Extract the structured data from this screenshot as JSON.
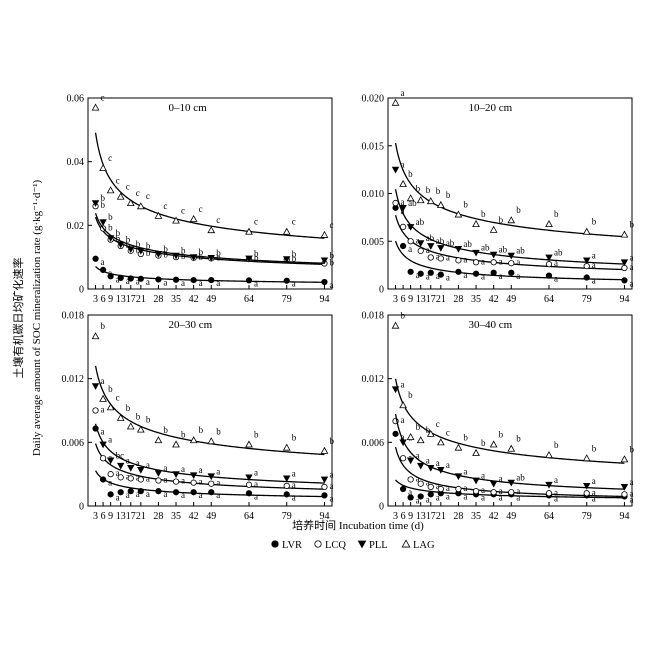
{
  "figure": {
    "ylabel_cn": "土壤有机碳日均矿化速率",
    "ylabel_en": "Daily average amount of SOC mineralization rate (g·kg⁻¹·d⁻¹)",
    "xlabel": "培养时间 Incubation time (d)",
    "legend": [
      {
        "marker": "filled-circle",
        "label": "LVR"
      },
      {
        "marker": "open-circle",
        "label": "LCQ"
      },
      {
        "marker": "filled-triangle-down",
        "label": "PLL"
      },
      {
        "marker": "open-triangle-up",
        "label": "LAG"
      }
    ]
  },
  "chart_data": [
    {
      "type": "scatter",
      "title": "0–10 cm",
      "x": [
        3,
        6,
        9,
        13,
        17,
        21,
        28,
        35,
        42,
        49,
        64,
        79,
        94
      ],
      "x_tick_labels": [
        "3",
        "6",
        "9",
        "13",
        "17",
        "21",
        "28",
        "35",
        "42",
        "49",
        "64",
        "79",
        "94"
      ],
      "ylim": [
        0,
        0.06
      ],
      "y_ticks": [
        "0",
        "0.02",
        "0.04",
        "0.06"
      ],
      "y_tick_values": [
        0,
        0.02,
        0.04,
        0.06
      ],
      "series": [
        {
          "name": "LVR",
          "values": [
            0.0095,
            0.006,
            0.004,
            0.0035,
            0.0033,
            0.0032,
            0.003,
            0.0029,
            0.0028,
            0.0028,
            0.0027,
            0.0026,
            0.0022
          ],
          "letters": [
            "a",
            "a",
            "a",
            "a",
            "a",
            "a",
            "a",
            "a",
            "a",
            "a",
            "a",
            "a",
            "a"
          ]
        },
        {
          "name": "LCQ",
          "values": [
            0.026,
            0.019,
            0.0155,
            0.0135,
            0.012,
            0.011,
            0.0105,
            0.01,
            0.0098,
            0.0096,
            0.0094,
            0.0092,
            0.008
          ],
          "letters": [
            "b",
            "b",
            "b",
            "b",
            "b",
            "b",
            "b",
            "b",
            "b",
            "b",
            "b",
            "b",
            "b"
          ]
        },
        {
          "name": "PLL",
          "values": [
            0.027,
            0.021,
            0.016,
            0.014,
            0.0125,
            0.012,
            0.011,
            0.0105,
            0.01,
            0.0098,
            0.0096,
            0.0094,
            0.009
          ],
          "letters": [
            "b",
            "b",
            "b",
            "b",
            "b",
            "b",
            "b",
            "b",
            "b",
            "b",
            "b",
            "b",
            "b"
          ]
        },
        {
          "name": "LAG",
          "values": [
            0.057,
            0.038,
            0.031,
            0.029,
            0.027,
            0.026,
            0.023,
            0.0215,
            0.022,
            0.0185,
            0.018,
            0.018,
            0.017
          ],
          "letters": [
            "c",
            "c",
            "c",
            "c",
            "c",
            "c",
            "c",
            "c",
            "c",
            "c",
            "c",
            "c",
            "c"
          ]
        }
      ]
    },
    {
      "type": "scatter",
      "title": "10–20 cm",
      "x": [
        3,
        6,
        9,
        13,
        17,
        21,
        28,
        35,
        42,
        49,
        64,
        79,
        94
      ],
      "x_tick_labels": [
        "3",
        "6",
        "9",
        "13",
        "17",
        "21",
        "28",
        "35",
        "42",
        "49",
        "64",
        "79",
        "94"
      ],
      "ylim": [
        0,
        0.02
      ],
      "y_ticks": [
        "0",
        "0.005",
        "0.010",
        "0.015",
        "0.020"
      ],
      "y_tick_values": [
        0,
        0.005,
        0.01,
        0.015,
        0.02
      ],
      "series": [
        {
          "name": "LVR",
          "values": [
            0.0085,
            0.0045,
            0.0018,
            0.0016,
            0.0017,
            0.0015,
            0.0018,
            0.0016,
            0.0017,
            0.0017,
            0.0014,
            0.0012,
            0.0009
          ],
          "letters": [
            "a",
            "a",
            "a",
            "a",
            "a",
            "a",
            "a",
            "a",
            "a",
            "a",
            "a",
            "a",
            "a"
          ]
        },
        {
          "name": "LCQ",
          "values": [
            0.009,
            0.0065,
            0.005,
            0.004,
            0.0033,
            0.0032,
            0.003,
            0.0028,
            0.0028,
            0.0027,
            0.0026,
            0.0024,
            0.0022
          ],
          "letters": [
            "a",
            "a",
            "a",
            "a",
            "a",
            "a",
            "a",
            "a",
            "a",
            "a",
            "a",
            "a",
            "a"
          ]
        },
        {
          "name": "PLL",
          "values": [
            0.0125,
            0.0085,
            0.0065,
            0.0048,
            0.0045,
            0.0043,
            0.0042,
            0.0038,
            0.0036,
            0.0035,
            0.0033,
            0.003,
            0.0028
          ],
          "letters": [
            "a",
            "ab",
            "ab",
            "ab",
            "ab",
            "ab",
            "ab",
            "ab",
            "ab",
            "ab",
            "ab",
            "a",
            "a"
          ]
        },
        {
          "name": "LAG",
          "values": [
            0.0195,
            0.011,
            0.0095,
            0.0093,
            0.0092,
            0.0088,
            0.0078,
            0.0068,
            0.0062,
            0.0072,
            0.0068,
            0.006,
            0.0057
          ],
          "letters": [
            "a",
            "b",
            "b",
            "b",
            "b",
            "b",
            "b",
            "b",
            "b",
            "b",
            "b",
            "b",
            "b"
          ]
        }
      ]
    },
    {
      "type": "scatter",
      "title": "20–30 cm",
      "x": [
        3,
        6,
        9,
        13,
        17,
        21,
        28,
        35,
        42,
        49,
        64,
        79,
        94
      ],
      "x_tick_labels": [
        "3",
        "6",
        "9",
        "13",
        "17",
        "21",
        "28",
        "35",
        "42",
        "49",
        "64",
        "79",
        "94"
      ],
      "ylim": [
        0,
        0.018
      ],
      "y_ticks": [
        "0",
        "0.006",
        "0.012",
        "0.018"
      ],
      "y_tick_values": [
        0,
        0.006,
        0.012,
        0.018
      ],
      "series": [
        {
          "name": "LVR",
          "values": [
            0.0073,
            0.0025,
            0.0011,
            0.0013,
            0.0014,
            0.0014,
            0.0014,
            0.0013,
            0.0013,
            0.0013,
            0.0012,
            0.0011,
            0.001
          ],
          "letters": [
            "a",
            "a",
            "a",
            "a",
            "a",
            "a",
            "a",
            "a",
            "a",
            "a",
            "a",
            "a",
            "a"
          ]
        },
        {
          "name": "LCQ",
          "values": [
            0.009,
            0.0045,
            0.003,
            0.0027,
            0.0026,
            0.0025,
            0.0024,
            0.0023,
            0.0022,
            0.0021,
            0.002,
            0.0019,
            0.0018
          ],
          "letters": [
            "a",
            "a",
            "a",
            "a",
            "a",
            "a",
            "a",
            "a",
            "a",
            "a",
            "a",
            "a",
            "a"
          ]
        },
        {
          "name": "PLL",
          "values": [
            0.0113,
            0.0058,
            0.0043,
            0.0038,
            0.0036,
            0.0034,
            0.0031,
            0.003,
            0.0029,
            0.0028,
            0.0027,
            0.0026,
            0.0025
          ],
          "letters": [
            "a",
            "a",
            "bc",
            "a",
            "a",
            "a",
            "a",
            "a",
            "a",
            "a",
            "a",
            "a",
            "a"
          ]
        },
        {
          "name": "LAG",
          "values": [
            0.016,
            0.0101,
            0.0093,
            0.0083,
            0.0075,
            0.0072,
            0.0062,
            0.0058,
            0.0062,
            0.0061,
            0.0058,
            0.0055,
            0.0052
          ],
          "letters": [
            "b",
            "b",
            "c",
            "b",
            "b",
            "b",
            "b",
            "b",
            "b",
            "b",
            "b",
            "b",
            "b"
          ]
        }
      ]
    },
    {
      "type": "scatter",
      "title": "30–40 cm",
      "x": [
        3,
        6,
        9,
        13,
        17,
        21,
        28,
        35,
        42,
        49,
        64,
        79,
        94
      ],
      "x_tick_labels": [
        "3",
        "6",
        "9",
        "13",
        "17",
        "21",
        "28",
        "35",
        "42",
        "49",
        "64",
        "79",
        "94"
      ],
      "ylim": [
        0,
        0.018
      ],
      "y_ticks": [
        "0",
        "0.006",
        "0.012",
        "0.018"
      ],
      "y_tick_values": [
        0,
        0.006,
        0.012,
        0.018
      ],
      "series": [
        {
          "name": "LVR",
          "values": [
            0.0068,
            0.0016,
            0.0008,
            0.0009,
            0.0011,
            0.0012,
            0.0012,
            0.0011,
            0.0011,
            0.0011,
            0.001,
            0.001,
            0.0009
          ],
          "letters": [
            "a",
            "a",
            "a",
            "a",
            "a",
            "a",
            "a",
            "a",
            "a",
            "a",
            "a",
            "a",
            "a"
          ]
        },
        {
          "name": "LCQ",
          "values": [
            0.008,
            0.0045,
            0.0025,
            0.0021,
            0.0018,
            0.0016,
            0.0016,
            0.0014,
            0.0013,
            0.0013,
            0.0012,
            0.0012,
            0.0011
          ],
          "letters": [
            "a",
            "a",
            "a",
            "a",
            "a",
            "a",
            "a",
            "a",
            "a",
            "a",
            "a",
            "a",
            "a"
          ]
        },
        {
          "name": "PLL",
          "values": [
            0.011,
            0.006,
            0.0043,
            0.0038,
            0.0036,
            0.0034,
            0.0028,
            0.0024,
            0.0021,
            0.0022,
            0.002,
            0.0019,
            0.0018
          ],
          "letters": [
            "a",
            "a",
            "a",
            "a",
            "a",
            "a",
            "a",
            "a",
            "a",
            "ab",
            "a",
            "a",
            "a"
          ]
        },
        {
          "name": "LAG",
          "values": [
            0.017,
            0.0095,
            0.0065,
            0.0062,
            0.0068,
            0.006,
            0.0055,
            0.005,
            0.0058,
            0.0054,
            0.0048,
            0.0045,
            0.0044
          ],
          "letters": [
            "b",
            "b",
            "b",
            "b",
            "c",
            "c",
            "b",
            "b",
            "b",
            "b",
            "b",
            "b",
            "b"
          ]
        }
      ]
    }
  ]
}
